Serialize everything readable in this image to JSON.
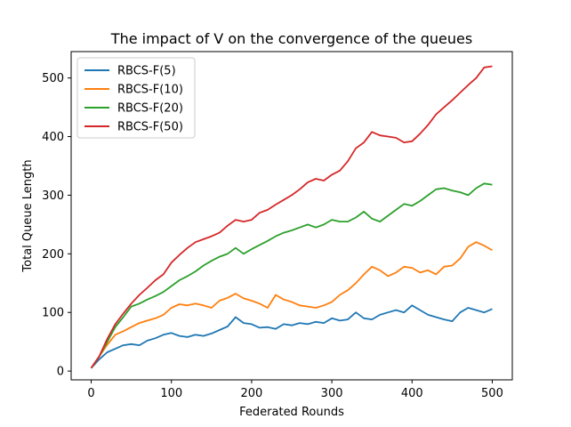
{
  "chart_data": {
    "type": "line",
    "title": "The impact of V on the convergence of the queues",
    "xlabel": "Federated Rounds",
    "ylabel": "Total Queue Length",
    "xlim": [
      -25,
      525
    ],
    "ylim": [
      -15,
      545
    ],
    "xticks": [
      0,
      100,
      200,
      300,
      400,
      500
    ],
    "yticks": [
      0,
      100,
      200,
      300,
      400,
      500
    ],
    "grid": false,
    "legend_position": "top-left",
    "series": [
      {
        "name": "RBCS-F(5)",
        "color": "#1f77b4",
        "points": [
          [
            0,
            5
          ],
          [
            10,
            20
          ],
          [
            20,
            32
          ],
          [
            30,
            38
          ],
          [
            40,
            44
          ],
          [
            50,
            46
          ],
          [
            60,
            44
          ],
          [
            70,
            52
          ],
          [
            80,
            56
          ],
          [
            90,
            62
          ],
          [
            100,
            65
          ],
          [
            110,
            60
          ],
          [
            120,
            58
          ],
          [
            130,
            62
          ],
          [
            140,
            60
          ],
          [
            150,
            64
          ],
          [
            160,
            70
          ],
          [
            170,
            76
          ],
          [
            180,
            92
          ],
          [
            190,
            82
          ],
          [
            200,
            80
          ],
          [
            210,
            74
          ],
          [
            220,
            75
          ],
          [
            230,
            72
          ],
          [
            240,
            80
          ],
          [
            250,
            78
          ],
          [
            260,
            82
          ],
          [
            270,
            80
          ],
          [
            280,
            84
          ],
          [
            290,
            82
          ],
          [
            300,
            90
          ],
          [
            310,
            86
          ],
          [
            320,
            88
          ],
          [
            330,
            100
          ],
          [
            340,
            90
          ],
          [
            350,
            88
          ],
          [
            360,
            96
          ],
          [
            370,
            100
          ],
          [
            380,
            104
          ],
          [
            390,
            100
          ],
          [
            400,
            112
          ],
          [
            410,
            104
          ],
          [
            420,
            96
          ],
          [
            430,
            92
          ],
          [
            440,
            88
          ],
          [
            450,
            85
          ],
          [
            460,
            100
          ],
          [
            470,
            108
          ],
          [
            480,
            104
          ],
          [
            490,
            100
          ],
          [
            500,
            106
          ]
        ]
      },
      {
        "name": "RBCS-F(10)",
        "color": "#ff7f0e",
        "points": [
          [
            0,
            5
          ],
          [
            10,
            25
          ],
          [
            20,
            45
          ],
          [
            30,
            62
          ],
          [
            40,
            68
          ],
          [
            50,
            75
          ],
          [
            60,
            82
          ],
          [
            70,
            86
          ],
          [
            80,
            90
          ],
          [
            90,
            96
          ],
          [
            100,
            108
          ],
          [
            110,
            114
          ],
          [
            120,
            112
          ],
          [
            130,
            115
          ],
          [
            140,
            112
          ],
          [
            150,
            108
          ],
          [
            160,
            120
          ],
          [
            170,
            125
          ],
          [
            180,
            132
          ],
          [
            190,
            124
          ],
          [
            200,
            120
          ],
          [
            210,
            115
          ],
          [
            220,
            108
          ],
          [
            230,
            130
          ],
          [
            240,
            122
          ],
          [
            250,
            118
          ],
          [
            260,
            112
          ],
          [
            270,
            110
          ],
          [
            280,
            108
          ],
          [
            290,
            112
          ],
          [
            300,
            118
          ],
          [
            310,
            130
          ],
          [
            320,
            138
          ],
          [
            330,
            150
          ],
          [
            340,
            165
          ],
          [
            350,
            178
          ],
          [
            360,
            172
          ],
          [
            370,
            162
          ],
          [
            380,
            168
          ],
          [
            390,
            178
          ],
          [
            400,
            176
          ],
          [
            410,
            168
          ],
          [
            420,
            172
          ],
          [
            430,
            165
          ],
          [
            440,
            178
          ],
          [
            450,
            180
          ],
          [
            460,
            192
          ],
          [
            470,
            212
          ],
          [
            480,
            220
          ],
          [
            490,
            214
          ],
          [
            500,
            206
          ]
        ]
      },
      {
        "name": "RBCS-F(20)",
        "color": "#2ca02c",
        "points": [
          [
            0,
            5
          ],
          [
            10,
            25
          ],
          [
            20,
            50
          ],
          [
            30,
            75
          ],
          [
            40,
            92
          ],
          [
            50,
            110
          ],
          [
            60,
            115
          ],
          [
            70,
            122
          ],
          [
            80,
            128
          ],
          [
            90,
            135
          ],
          [
            100,
            145
          ],
          [
            110,
            155
          ],
          [
            120,
            162
          ],
          [
            130,
            170
          ],
          [
            140,
            180
          ],
          [
            150,
            188
          ],
          [
            160,
            195
          ],
          [
            170,
            200
          ],
          [
            180,
            210
          ],
          [
            190,
            200
          ],
          [
            200,
            208
          ],
          [
            210,
            215
          ],
          [
            220,
            222
          ],
          [
            230,
            230
          ],
          [
            240,
            236
          ],
          [
            250,
            240
          ],
          [
            260,
            245
          ],
          [
            270,
            250
          ],
          [
            280,
            245
          ],
          [
            290,
            250
          ],
          [
            300,
            258
          ],
          [
            310,
            255
          ],
          [
            320,
            255
          ],
          [
            330,
            262
          ],
          [
            340,
            272
          ],
          [
            350,
            260
          ],
          [
            360,
            255
          ],
          [
            370,
            265
          ],
          [
            380,
            275
          ],
          [
            390,
            285
          ],
          [
            400,
            282
          ],
          [
            410,
            290
          ],
          [
            420,
            300
          ],
          [
            430,
            310
          ],
          [
            440,
            312
          ],
          [
            450,
            308
          ],
          [
            460,
            305
          ],
          [
            470,
            300
          ],
          [
            480,
            312
          ],
          [
            490,
            320
          ],
          [
            500,
            318
          ]
        ]
      },
      {
        "name": "RBCS-F(50)",
        "color": "#d62728",
        "points": [
          [
            0,
            5
          ],
          [
            10,
            25
          ],
          [
            20,
            55
          ],
          [
            30,
            80
          ],
          [
            40,
            98
          ],
          [
            50,
            115
          ],
          [
            60,
            130
          ],
          [
            70,
            142
          ],
          [
            80,
            155
          ],
          [
            90,
            165
          ],
          [
            100,
            185
          ],
          [
            110,
            198
          ],
          [
            120,
            210
          ],
          [
            130,
            220
          ],
          [
            140,
            225
          ],
          [
            150,
            230
          ],
          [
            160,
            236
          ],
          [
            170,
            248
          ],
          [
            180,
            258
          ],
          [
            190,
            255
          ],
          [
            200,
            258
          ],
          [
            210,
            270
          ],
          [
            220,
            275
          ],
          [
            230,
            284
          ],
          [
            240,
            292
          ],
          [
            250,
            300
          ],
          [
            260,
            310
          ],
          [
            270,
            322
          ],
          [
            280,
            328
          ],
          [
            290,
            325
          ],
          [
            300,
            335
          ],
          [
            310,
            342
          ],
          [
            320,
            358
          ],
          [
            330,
            380
          ],
          [
            340,
            390
          ],
          [
            350,
            408
          ],
          [
            360,
            402
          ],
          [
            370,
            400
          ],
          [
            380,
            398
          ],
          [
            390,
            390
          ],
          [
            400,
            392
          ],
          [
            410,
            405
          ],
          [
            420,
            420
          ],
          [
            430,
            438
          ],
          [
            440,
            450
          ],
          [
            450,
            462
          ],
          [
            460,
            475
          ],
          [
            470,
            488
          ],
          [
            480,
            500
          ],
          [
            490,
            518
          ],
          [
            500,
            520
          ]
        ]
      }
    ]
  }
}
